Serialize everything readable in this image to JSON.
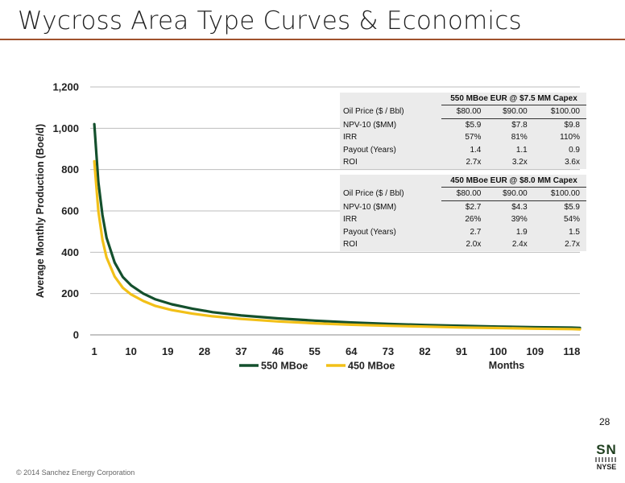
{
  "header": {
    "title": "Wycross Area Type Curves & Economics"
  },
  "chart_data": {
    "type": "line",
    "title": "",
    "xlabel": "Months",
    "ylabel": "Average Monthly Production (Boe/d)",
    "xlim": [
      0,
      120
    ],
    "ylim": [
      0,
      1200
    ],
    "x_ticks": [
      "1",
      "10",
      "19",
      "28",
      "37",
      "46",
      "55",
      "64",
      "73",
      "82",
      "91",
      "100",
      "109",
      "118"
    ],
    "y_ticks": [
      "0",
      "200",
      "400",
      "600",
      "800",
      "1,000",
      "1,200"
    ],
    "grid": true,
    "legend_position": "bottom-left",
    "series": [
      {
        "name": "550 MBoe",
        "color": "#14502d",
        "points": [
          [
            1,
            1020
          ],
          [
            2,
            740
          ],
          [
            3,
            580
          ],
          [
            4,
            470
          ],
          [
            6,
            350
          ],
          [
            8,
            280
          ],
          [
            10,
            240
          ],
          [
            13,
            200
          ],
          [
            16,
            172
          ],
          [
            20,
            148
          ],
          [
            25,
            127
          ],
          [
            30,
            110
          ],
          [
            37,
            94
          ],
          [
            46,
            80
          ],
          [
            55,
            69
          ],
          [
            64,
            60
          ],
          [
            73,
            53
          ],
          [
            82,
            48
          ],
          [
            91,
            44
          ],
          [
            100,
            40
          ],
          [
            109,
            37
          ],
          [
            118,
            35
          ],
          [
            120,
            34
          ]
        ]
      },
      {
        "name": "450 MBoe",
        "color": "#f2c018",
        "points": [
          [
            1,
            840
          ],
          [
            2,
            600
          ],
          [
            3,
            460
          ],
          [
            4,
            375
          ],
          [
            6,
            282
          ],
          [
            8,
            228
          ],
          [
            10,
            196
          ],
          [
            13,
            164
          ],
          [
            16,
            140
          ],
          [
            20,
            120
          ],
          [
            25,
            103
          ],
          [
            30,
            90
          ],
          [
            37,
            77
          ],
          [
            46,
            65
          ],
          [
            55,
            56
          ],
          [
            64,
            49
          ],
          [
            73,
            44
          ],
          [
            82,
            40
          ],
          [
            91,
            36
          ],
          [
            100,
            33
          ],
          [
            109,
            30
          ],
          [
            118,
            28
          ],
          [
            120,
            27
          ]
        ]
      }
    ]
  },
  "econ_tables": [
    {
      "title": "550 MBoe EUR @ $7.5 MM Capex",
      "rows": [
        {
          "label": "Oil Price ($ / Bbl)",
          "values": [
            "$80.00",
            "$90.00",
            "$100.00"
          ]
        },
        {
          "label": "NPV-10 ($MM)",
          "values": [
            "$5.9",
            "$7.8",
            "$9.8"
          ]
        },
        {
          "label": "IRR",
          "values": [
            "57%",
            "81%",
            "110%"
          ]
        },
        {
          "label": "Payout (Years)",
          "values": [
            "1.4",
            "1.1",
            "0.9"
          ]
        },
        {
          "label": "ROI",
          "values": [
            "2.7x",
            "3.2x",
            "3.6x"
          ]
        }
      ]
    },
    {
      "title": "450 MBoe EUR @ $8.0 MM Capex",
      "rows": [
        {
          "label": "Oil Price ($ / Bbl)",
          "values": [
            "$80.00",
            "$90.00",
            "$100.00"
          ]
        },
        {
          "label": "NPV-10 ($MM)",
          "values": [
            "$2.7",
            "$4.3",
            "$5.9"
          ]
        },
        {
          "label": "IRR",
          "values": [
            "26%",
            "39%",
            "54%"
          ]
        },
        {
          "label": "Payout (Years)",
          "values": [
            "2.7",
            "1.9",
            "1.5"
          ]
        },
        {
          "label": "ROI",
          "values": [
            "2.0x",
            "2.4x",
            "2.7x"
          ]
        }
      ]
    }
  ],
  "footer": {
    "page_number": "28",
    "copyright": "© 2014 Sanchez Energy Corporation",
    "logo_text": "SN",
    "exchange": "NYSE"
  }
}
